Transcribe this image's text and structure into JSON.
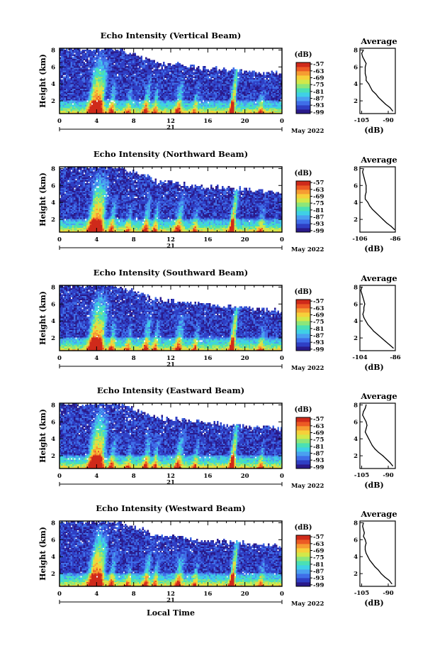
{
  "chart_data": [
    {
      "type": "heatmap",
      "title": "Echo Intensity (Vertical Beam)",
      "xlabel": "",
      "ylabel": "Height (km)",
      "x_ticks": [
        "0",
        "4",
        "8",
        "12",
        "16",
        "20",
        "0"
      ],
      "day_label": "21",
      "month_label": "May 2022",
      "y_ticks": [
        "2",
        "4",
        "6",
        "8"
      ],
      "ylim": [
        0.5,
        8.2
      ],
      "colorbar": {
        "unit": "(dB)",
        "ticks": [
          "-57",
          "-63",
          "-69",
          "-75",
          "-81",
          "-87",
          "-93",
          "-99"
        ],
        "range": [
          -99,
          -57
        ]
      },
      "profile": {
        "title": "Average",
        "xlabel": "(dB)",
        "x_ticks": [
          "-105",
          "-90"
        ],
        "y_ticks": [
          "2",
          "4",
          "6",
          "8"
        ],
        "xlim": [
          -106,
          -86
        ],
        "heights": [
          0.8,
          1.2,
          1.6,
          2.0,
          2.4,
          2.8,
          3.2,
          3.6,
          4.0,
          4.4,
          4.8,
          5.2,
          5.6,
          6.0,
          6.4,
          6.8,
          7.2,
          7.6,
          8.0
        ],
        "values": [
          -87.5,
          -89,
          -91.5,
          -93.5,
          -95.5,
          -97,
          -99,
          -100,
          -101,
          -102.5,
          -102.5,
          -103,
          -103,
          -103,
          -102.5,
          -103.5,
          -104.5,
          -105,
          -104
        ]
      }
    },
    {
      "type": "heatmap",
      "title": "Echo Intensity (Northward Beam)",
      "xlabel": "",
      "ylabel": "Height (km)",
      "x_ticks": [
        "0",
        "4",
        "8",
        "12",
        "16",
        "20",
        "0"
      ],
      "day_label": "21",
      "month_label": "May 2022",
      "y_ticks": [
        "2",
        "4",
        "6",
        "8"
      ],
      "ylim": [
        0.5,
        8.2
      ],
      "colorbar": {
        "unit": "(dB)",
        "ticks": [
          "-57",
          "-63",
          "-69",
          "-75",
          "-81",
          "-87",
          "-93",
          "-99"
        ],
        "range": [
          -99,
          -57
        ]
      },
      "profile": {
        "title": "Average",
        "xlabel": "(dB)",
        "x_ticks": [
          "-106",
          "-86"
        ],
        "y_ticks": [
          "2",
          "4",
          "6",
          "8"
        ],
        "xlim": [
          -106,
          -86
        ],
        "heights": [
          0.8,
          1.2,
          1.6,
          2.0,
          2.4,
          2.8,
          3.2,
          3.6,
          4.0,
          4.4,
          4.8,
          5.2,
          5.6,
          6.0,
          6.4,
          6.8,
          7.2,
          7.6,
          8.0
        ],
        "values": [
          -86.5,
          -88.5,
          -91,
          -93,
          -95,
          -97,
          -99,
          -100.5,
          -101.5,
          -103,
          -103,
          -102.5,
          -102.5,
          -102.5,
          -103,
          -103.5,
          -104,
          -104.5,
          -104
        ]
      }
    },
    {
      "type": "heatmap",
      "title": "Echo Intensity (Southward Beam)",
      "xlabel": "",
      "ylabel": "Height (km)",
      "x_ticks": [
        "0",
        "4",
        "8",
        "12",
        "16",
        "20",
        "0"
      ],
      "day_label": "21",
      "month_label": "May 2022",
      "y_ticks": [
        "2",
        "4",
        "6",
        "8"
      ],
      "ylim": [
        0.5,
        8.2
      ],
      "colorbar": {
        "unit": "(dB)",
        "ticks": [
          "-57",
          "-63",
          "-69",
          "-75",
          "-81",
          "-87",
          "-93",
          "-99"
        ],
        "range": [
          -99,
          -57
        ]
      },
      "profile": {
        "title": "Average",
        "xlabel": "(dB)",
        "x_ticks": [
          "-104",
          "-86"
        ],
        "y_ticks": [
          "2",
          "4",
          "6",
          "8"
        ],
        "xlim": [
          -104,
          -86
        ],
        "heights": [
          0.8,
          1.2,
          1.6,
          2.0,
          2.4,
          2.8,
          3.2,
          3.6,
          4.0,
          4.4,
          4.8,
          5.2,
          5.6,
          6.0,
          6.4,
          6.8,
          7.2,
          7.6,
          8.0
        ],
        "values": [
          -87,
          -89,
          -91,
          -93,
          -95,
          -97,
          -98.5,
          -100,
          -101,
          -102,
          -102.5,
          -102,
          -102,
          -101.5,
          -102,
          -102.5,
          -103,
          -103.5,
          -103
        ]
      }
    },
    {
      "type": "heatmap",
      "title": "Echo Intensity (Eastward Beam)",
      "xlabel": "",
      "ylabel": "Height (km)",
      "x_ticks": [
        "0",
        "4",
        "8",
        "12",
        "16",
        "20",
        "0"
      ],
      "day_label": "21",
      "month_label": "May 2022",
      "y_ticks": [
        "2",
        "4",
        "6",
        "8"
      ],
      "ylim": [
        0.5,
        8.2
      ],
      "colorbar": {
        "unit": "(dB)",
        "ticks": [
          "-57",
          "-63",
          "-69",
          "-75",
          "-81",
          "-87",
          "-93",
          "-99"
        ],
        "range": [
          -99,
          -57
        ]
      },
      "profile": {
        "title": "Average",
        "xlabel": "(dB)",
        "x_ticks": [
          "-105",
          "-90"
        ],
        "y_ticks": [
          "2",
          "4",
          "6",
          "8"
        ],
        "xlim": [
          -106,
          -86
        ],
        "heights": [
          0.8,
          1.2,
          1.6,
          2.0,
          2.4,
          2.8,
          3.2,
          3.6,
          4.0,
          4.4,
          4.8,
          5.2,
          5.6,
          6.0,
          6.4,
          6.8,
          7.2,
          7.6,
          8.0
        ],
        "values": [
          -87.5,
          -89,
          -91,
          -93,
          -95.5,
          -97.5,
          -99,
          -100,
          -101,
          -102,
          -103,
          -102.5,
          -102,
          -102.5,
          -103.5,
          -104.5,
          -104,
          -103,
          -102.5
        ]
      }
    },
    {
      "type": "heatmap",
      "title": "Echo Intensity (Westward Beam)",
      "xlabel": "Local Time",
      "ylabel": "Height (km)",
      "x_ticks": [
        "0",
        "4",
        "8",
        "12",
        "16",
        "20",
        "0"
      ],
      "day_label": "21",
      "month_label": "May 2022",
      "y_ticks": [
        "2",
        "4",
        "6",
        "8"
      ],
      "ylim": [
        0.5,
        8.2
      ],
      "colorbar": {
        "unit": "(dB)",
        "ticks": [
          "-57",
          "-63",
          "-69",
          "-75",
          "-81",
          "-87",
          "-93",
          "-99"
        ],
        "range": [
          -99,
          -57
        ]
      },
      "profile": {
        "title": "Average",
        "xlabel": "(dB)",
        "x_ticks": [
          "-105",
          "-90"
        ],
        "y_ticks": [
          "2",
          "4",
          "6",
          "8"
        ],
        "xlim": [
          -106,
          -86
        ],
        "heights": [
          0.8,
          1.2,
          1.6,
          2.0,
          2.4,
          2.8,
          3.2,
          3.6,
          4.0,
          4.4,
          4.8,
          5.2,
          5.6,
          6.0,
          6.4,
          6.8,
          7.2,
          7.6,
          8.0
        ],
        "values": [
          -88,
          -89.5,
          -92,
          -94,
          -95.5,
          -97.5,
          -99,
          -100.5,
          -101.5,
          -102.5,
          -103,
          -103,
          -102.5,
          -103,
          -104,
          -103.5,
          -104,
          -104.5,
          -104
        ]
      }
    }
  ],
  "colormap": [
    "#2a1a8a",
    "#2f3fc4",
    "#3f6ee8",
    "#4aa0f0",
    "#3fd0e6",
    "#4ae0b4",
    "#8ce67a",
    "#d2e84a",
    "#f6d03a",
    "#f69c32",
    "#ec5a24",
    "#cf2a1a"
  ]
}
